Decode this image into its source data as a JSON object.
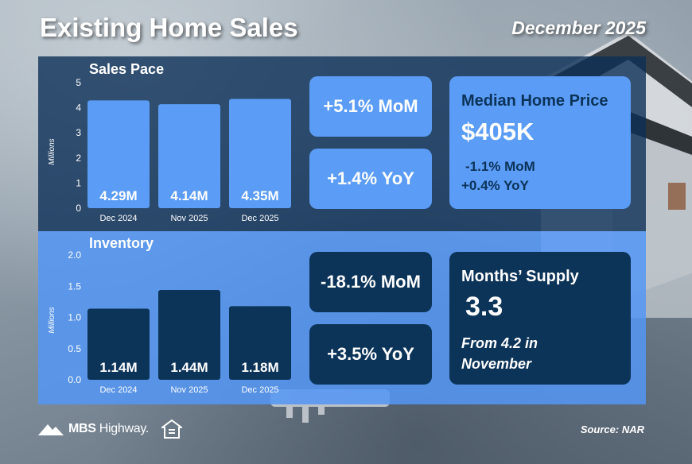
{
  "header": {
    "title": "Existing Home Sales",
    "date": "December 2025"
  },
  "sales": {
    "label": "Sales Pace",
    "mom": "+5.1% MoM",
    "yoy": "+1.4% YoY",
    "median": {
      "title": "Median Home Price",
      "value": "$405K",
      "mom": "-1.1% MoM",
      "yoy": "+0.4% YoY"
    }
  },
  "inventory": {
    "label": "Inventory",
    "mom": "-18.1% MoM",
    "yoy": "+3.5% YoY",
    "supply": {
      "title": "Months’ Supply",
      "value": "3.3",
      "note_line1": "From 4.2 in",
      "note_line2": "November"
    }
  },
  "chart_data": [
    {
      "type": "bar",
      "title": "Sales Pace",
      "ylabel": "Millions",
      "categories": [
        "Dec 2024",
        "Nov 2025",
        "Dec 2025"
      ],
      "values": [
        4.29,
        4.14,
        4.35
      ],
      "data_labels": [
        "4.29M",
        "4.14M",
        "4.35M"
      ],
      "ylim": [
        0,
        5
      ],
      "yticks": [
        "0",
        "1",
        "2",
        "3",
        "4",
        "5"
      ],
      "bar_color": "#5b9cf6"
    },
    {
      "type": "bar",
      "title": "Inventory",
      "ylabel": "Millions",
      "categories": [
        "Dec 2024",
        "Nov 2025",
        "Dec 2025"
      ],
      "values": [
        1.14,
        1.44,
        1.18
      ],
      "data_labels": [
        "1.14M",
        "1.44M",
        "1.18M"
      ],
      "ylim": [
        0,
        2
      ],
      "yticks": [
        "0.0",
        "0.5",
        "1.0",
        "1.5",
        "2.0"
      ],
      "bar_color": "#0c3358"
    }
  ],
  "footer": {
    "logo_bold": "MBS",
    "logo_rest": " Highway",
    "logo_mark": ".",
    "source": "Source: NAR"
  },
  "colors": {
    "accent_blue": "#5b9cf6",
    "navy": "#0c3358"
  }
}
